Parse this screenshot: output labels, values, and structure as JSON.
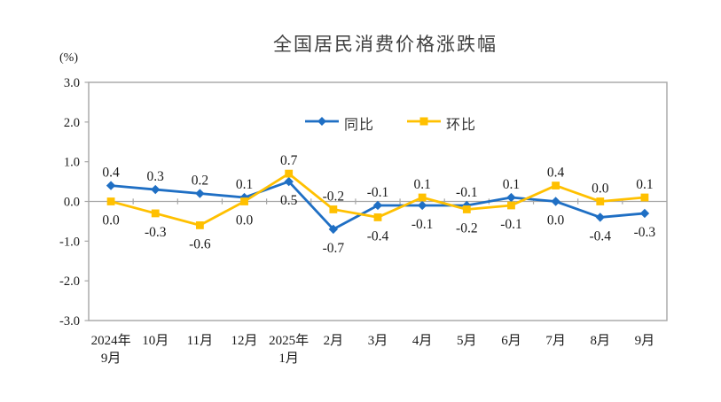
{
  "title": "全国居民消费价格涨跌幅",
  "colors": {
    "series_yoy": "#1F6FC4",
    "series_mom": "#FFC000",
    "axis": "#A6A6A6",
    "data_label": "#1A1A1A",
    "tick_label": "#1A1A1A",
    "title_text": "#404040"
  },
  "chart_data": {
    "type": "line",
    "title": "全国居民消费价格涨跌幅",
    "ylabel": "(%)",
    "xlabel": "",
    "ylim": [
      -3.0,
      3.0
    ],
    "ytick_step": 1.0,
    "yticks": [
      "3.0",
      "2.0",
      "1.0",
      "0.0",
      "-1.0",
      "-2.0",
      "-3.0"
    ],
    "ytick_values": [
      3,
      2,
      1,
      0,
      -1,
      -2,
      -3
    ],
    "grid": "zero-line-only",
    "legend_position": "top-center-inside",
    "categories": [
      "2024年9月",
      "10月",
      "11月",
      "12月",
      "2025年1月",
      "2月",
      "3月",
      "4月",
      "5月",
      "6月",
      "7月",
      "8月",
      "9月"
    ],
    "category_lines": [
      [
        "2024年",
        "9月"
      ],
      [
        "10月"
      ],
      [
        "11月"
      ],
      [
        "12月"
      ],
      [
        "2025年",
        "1月"
      ],
      [
        "2月"
      ],
      [
        "3月"
      ],
      [
        "4月"
      ],
      [
        "5月"
      ],
      [
        "6月"
      ],
      [
        "7月"
      ],
      [
        "8月"
      ],
      [
        "9月"
      ]
    ],
    "series": [
      {
        "name": "同比",
        "color": "#1F6FC4",
        "marker": "diamond",
        "values": [
          0.4,
          0.3,
          0.2,
          0.1,
          0.5,
          -0.7,
          -0.1,
          -0.1,
          -0.1,
          0.1,
          0.0,
          -0.4,
          -0.3
        ]
      },
      {
        "name": "环比",
        "color": "#FFC000",
        "marker": "square",
        "values": [
          0.0,
          -0.3,
          -0.6,
          0.0,
          0.7,
          -0.2,
          -0.4,
          0.1,
          -0.2,
          -0.1,
          0.4,
          0.0,
          0.1
        ]
      }
    ]
  }
}
